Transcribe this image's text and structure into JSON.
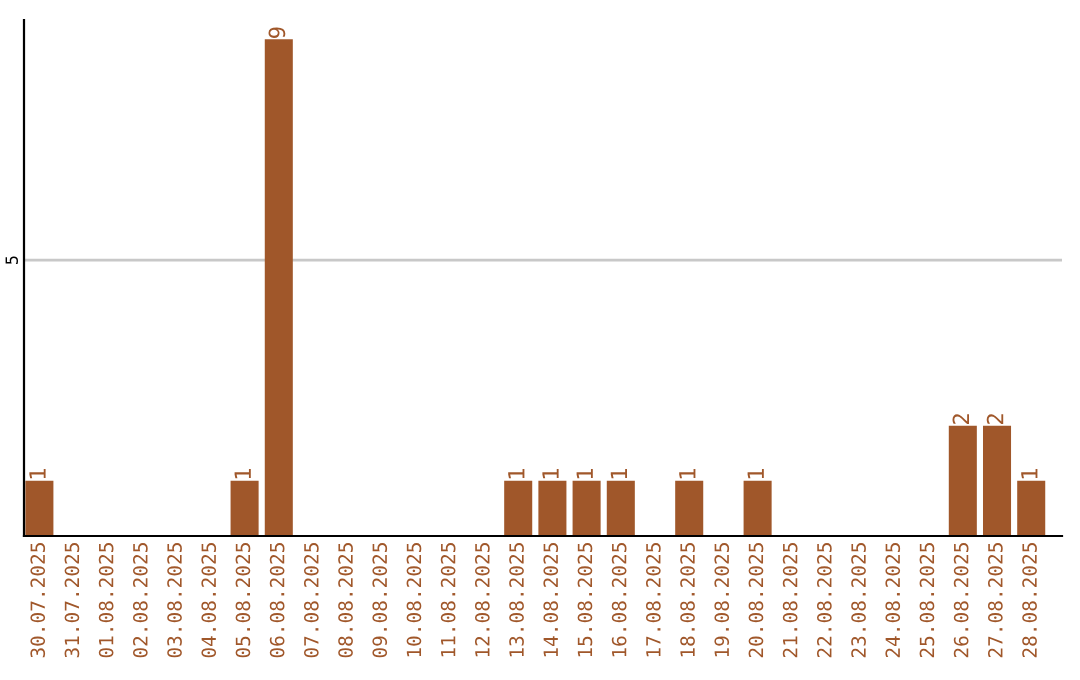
{
  "chart_data": {
    "type": "bar",
    "categories": [
      "30.07.2025",
      "31.07.2025",
      "01.08.2025",
      "02.08.2025",
      "03.08.2025",
      "04.08.2025",
      "05.08.2025",
      "06.08.2025",
      "07.08.2025",
      "08.08.2025",
      "09.08.2025",
      "10.08.2025",
      "11.08.2025",
      "12.08.2025",
      "13.08.2025",
      "14.08.2025",
      "15.08.2025",
      "16.08.2025",
      "17.08.2025",
      "18.08.2025",
      "19.08.2025",
      "20.08.2025",
      "21.08.2025",
      "22.08.2025",
      "23.08.2025",
      "24.08.2025",
      "25.08.2025",
      "26.08.2025",
      "27.08.2025",
      "28.08.2025"
    ],
    "values": [
      1,
      0,
      0,
      0,
      0,
      0,
      1,
      9,
      0,
      0,
      0,
      0,
      0,
      0,
      1,
      1,
      1,
      1,
      0,
      1,
      0,
      1,
      0,
      0,
      0,
      0,
      0,
      2,
      2,
      1
    ],
    "value_labels": [
      "1",
      null,
      null,
      null,
      null,
      null,
      "1",
      "9",
      null,
      null,
      null,
      null,
      null,
      null,
      "1",
      "1",
      "1",
      "1",
      null,
      "1",
      null,
      "1",
      null,
      null,
      null,
      null,
      null,
      "2",
      "2",
      "1"
    ],
    "color": "#a0572a",
    "ylim": [
      0,
      9.35
    ],
    "yticks": [
      5
    ],
    "grid": "y",
    "legend": false
  }
}
